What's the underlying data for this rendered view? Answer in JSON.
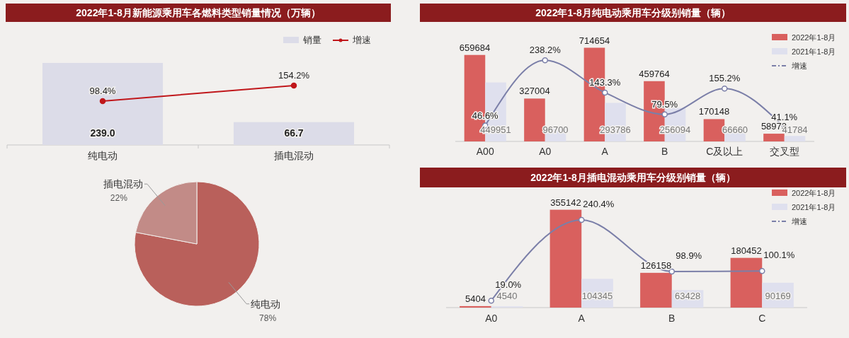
{
  "chart_data": [
    {
      "type": "bar",
      "title": "2022年1-8月新能源乘用车各燃料类型销量情况（万辆）",
      "categories": [
        "纯电动",
        "插电混动"
      ],
      "legend": "top right",
      "marker": "circle",
      "series": [
        {
          "name": "销量",
          "type": "bar",
          "color": "#dcdce8",
          "values": [
            239.0,
            66.7
          ],
          "value_labels": [
            "239.0",
            "66.7"
          ]
        },
        {
          "name": "增速",
          "type": "line",
          "axis": "y2",
          "color": "#c0171b",
          "values": [
            98.4,
            154.2
          ],
          "value_labels": [
            "98.4%",
            "154.2%"
          ]
        }
      ]
    },
    {
      "type": "pie",
      "categories": [
        "纯电动",
        "插电混动"
      ],
      "values": [
        78,
        22
      ],
      "colors": [
        "#b9605b",
        "#c28b87"
      ],
      "value_labels": [
        "78%",
        "22%"
      ]
    },
    {
      "type": "bar",
      "title": "2022年1-8月纯电动乘用车分级别销量（辆）",
      "categories": [
        "A00",
        "A0",
        "A",
        "B",
        "C及以上",
        "交叉型"
      ],
      "legend": "top right",
      "marker": "circle",
      "data_labels": true,
      "series": [
        {
          "name": "2022年1-8月",
          "type": "bar",
          "color": "#d9605e",
          "values": [
            659684,
            327004,
            714654,
            459764,
            170148,
            58973
          ]
        },
        {
          "name": "2021年1-8月",
          "type": "bar",
          "color": "#dfe0ee",
          "values": [
            449951,
            96700,
            293786,
            256094,
            66660,
            41784
          ]
        },
        {
          "name": "增速",
          "type": "line",
          "axis": "y2",
          "color": "#7b7fa8",
          "values": [
            46.6,
            238.2,
            143.3,
            79.5,
            155.2,
            41.1
          ],
          "value_labels": [
            "46.6%",
            "238.2%",
            "143.3%",
            "79.5%",
            "155.2%",
            "41.1%"
          ]
        }
      ]
    },
    {
      "type": "bar",
      "title": "2022年1-8月插电混动乘用车分级别销量（辆）",
      "categories": [
        "A0",
        "A",
        "B",
        "C"
      ],
      "legend": "top right",
      "marker": "circle",
      "data_labels": true,
      "series": [
        {
          "name": "2022年1-8月",
          "type": "bar",
          "color": "#d9605e",
          "values": [
            5404,
            355142,
            126158,
            180452
          ]
        },
        {
          "name": "2021年1-8月",
          "type": "bar",
          "color": "#dfe0ee",
          "values": [
            4540,
            104345,
            63428,
            90169
          ]
        },
        {
          "name": "增速",
          "type": "line",
          "axis": "y2",
          "color": "#7b7fa8",
          "values": [
            19.0,
            240.4,
            98.9,
            100.1
          ],
          "value_labels": [
            "19.0%",
            "240.4%",
            "98.9%",
            "100.1%"
          ]
        }
      ]
    }
  ]
}
